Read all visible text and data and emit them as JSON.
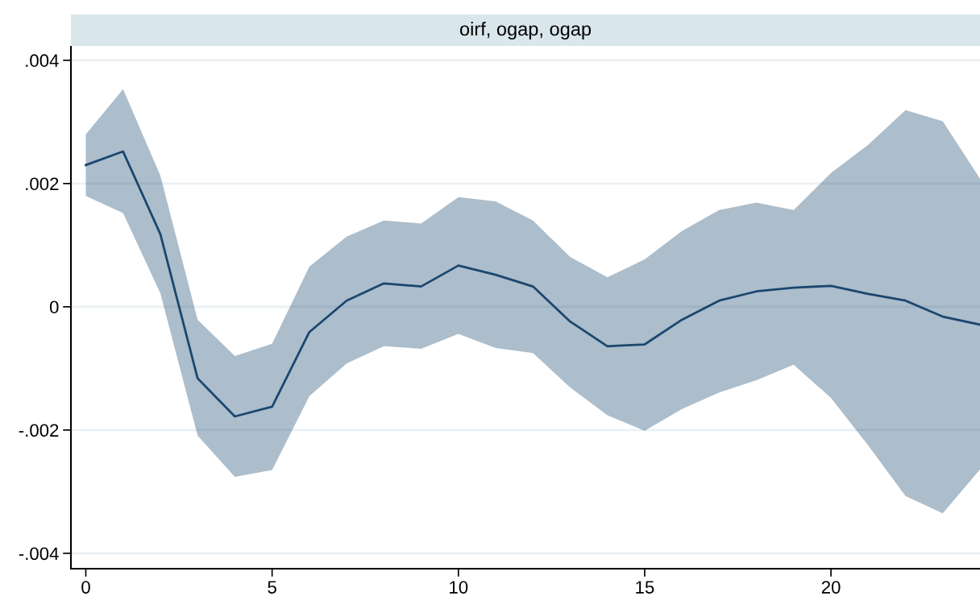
{
  "chart_data": {
    "type": "line",
    "title": "oirf, ogap, ogap",
    "x": [
      0,
      1,
      2,
      3,
      4,
      5,
      6,
      7,
      8,
      9,
      10,
      11,
      12,
      13,
      14,
      15,
      16,
      17,
      18,
      19,
      20,
      21,
      22,
      23,
      24
    ],
    "series": [
      {
        "color": "#1a476f",
        "values": [
          0.0023,
          0.00252,
          0.00118,
          -0.00116,
          -0.00178,
          -0.00162,
          -0.00041,
          0.0001,
          0.00038,
          0.00033,
          0.00067,
          0.00052,
          0.00033,
          -0.00024,
          -0.00064,
          -0.00061,
          -0.00021,
          0.0001,
          0.00025,
          0.00031,
          0.00034,
          0.00021,
          0.0001,
          -0.00016,
          -0.00029
        ],
        "upper": [
          0.0028,
          0.00353,
          0.00213,
          -0.00021,
          -0.0008,
          -0.0006,
          0.00065,
          0.00114,
          0.0014,
          0.00135,
          0.00178,
          0.00171,
          0.0014,
          0.00081,
          0.00048,
          0.00077,
          0.00123,
          0.00157,
          0.00169,
          0.00157,
          0.00217,
          0.00263,
          0.00319,
          0.00301,
          0.00208
        ],
        "lower": [
          0.0018,
          0.00152,
          0.00022,
          -0.00209,
          -0.00276,
          -0.00265,
          -0.00145,
          -0.00092,
          -0.00064,
          -0.00068,
          -0.00044,
          -0.00067,
          -0.00075,
          -0.00131,
          -0.00176,
          -0.00201,
          -0.00166,
          -0.00139,
          -0.00119,
          -0.00094,
          -0.00148,
          -0.00225,
          -0.00307,
          -0.00335,
          -0.00264
        ]
      }
    ],
    "xlim": [
      -0.4,
      24
    ],
    "xticks": [
      0,
      5,
      10,
      15,
      20
    ],
    "ylim": [
      -0.00425,
      0.00422
    ],
    "yticks": [
      {
        "value": -0.004,
        "label": "-.004"
      },
      {
        "value": -0.002,
        "label": "-.002"
      },
      {
        "value": 0,
        "label": "0"
      },
      {
        "value": 0.002,
        "label": ".002"
      },
      {
        "value": 0.004,
        "label": ".004"
      }
    ],
    "grid": "y",
    "marker": "none",
    "line_style": "solid"
  }
}
